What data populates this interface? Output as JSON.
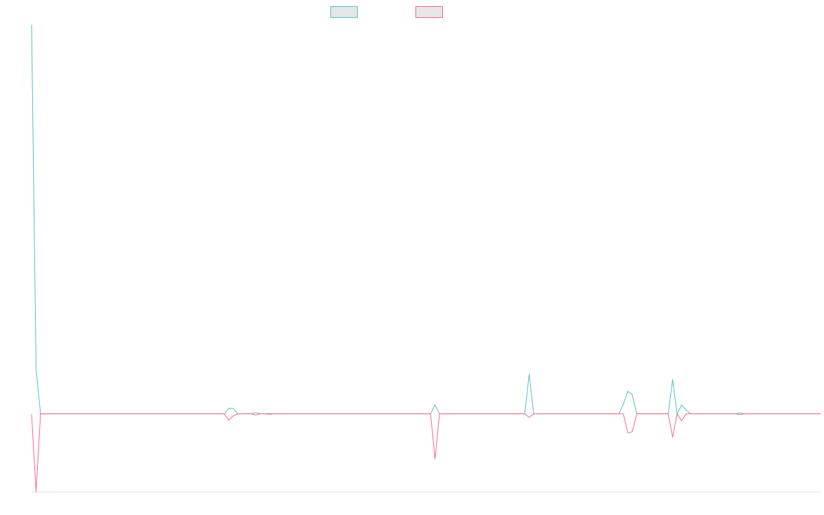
{
  "chart_data": {
    "type": "line",
    "ylim": [
      -20,
      100
    ],
    "series": [
      {
        "color": "#4bc0c0",
        "values": [
          100,
          11.5,
          0,
          0,
          0,
          0,
          0,
          0,
          0,
          0,
          0,
          0,
          0,
          0,
          0,
          0,
          0,
          0,
          0,
          0,
          0,
          0,
          0,
          0,
          0,
          0,
          0,
          0,
          0,
          0,
          0,
          0,
          0,
          0,
          0,
          0,
          0,
          0,
          0,
          0,
          0,
          0,
          0,
          0,
          1.4,
          1.4,
          0,
          0,
          0,
          0,
          0.3,
          0,
          0,
          0.1,
          0,
          0,
          0,
          0,
          0,
          0,
          0,
          0,
          0,
          0,
          0,
          0,
          0,
          0,
          0,
          0,
          0,
          0,
          0,
          0,
          0,
          0,
          0,
          0,
          0,
          0,
          0,
          0,
          0,
          0,
          0,
          0,
          0,
          0,
          0,
          0,
          2.3,
          0,
          0,
          0,
          0,
          0,
          0,
          0,
          0,
          0,
          0,
          0,
          0,
          0,
          0,
          0,
          0,
          0,
          0,
          0,
          0,
          10.2,
          0,
          0,
          0,
          0,
          0,
          0,
          0,
          0,
          0,
          0,
          0,
          0,
          0,
          0,
          0,
          0,
          0,
          0,
          0,
          0,
          2.5,
          5.8,
          4.9,
          0,
          0,
          0,
          0,
          0,
          0,
          0,
          0,
          8.8,
          0,
          2.3,
          1,
          0,
          0,
          0,
          0,
          0,
          0,
          0,
          0,
          0,
          0,
          0,
          0.2,
          0,
          0,
          0,
          0,
          0,
          0,
          0,
          0,
          0,
          0,
          0,
          0,
          0,
          0,
          0,
          0,
          0,
          0
        ]
      },
      {
        "color": "#ff6384",
        "values": [
          0,
          -20,
          0,
          0,
          0,
          0,
          0,
          0,
          0,
          0,
          0,
          0,
          0,
          0,
          0,
          0,
          0,
          0,
          0,
          0,
          0,
          0,
          0,
          0,
          0,
          0,
          0,
          0,
          0,
          0,
          0,
          0,
          0,
          0,
          0,
          0,
          0,
          0,
          0,
          0,
          0,
          0,
          0,
          0,
          -1.6,
          -0.5,
          0,
          0,
          0,
          0,
          -0.3,
          0,
          0,
          -0.1,
          0,
          0,
          0,
          0,
          0,
          0,
          0,
          0,
          0,
          0,
          0,
          0,
          0,
          0,
          0,
          0,
          0,
          0,
          0,
          0,
          0,
          0,
          0,
          0,
          0,
          0,
          0,
          0,
          0,
          0,
          0,
          0,
          0,
          0,
          0,
          0,
          -11.6,
          0,
          0,
          0,
          0,
          0,
          0,
          0,
          0,
          0,
          0,
          0,
          0,
          0,
          0,
          0,
          0,
          0,
          0,
          0,
          0,
          -0.9,
          0,
          0,
          0,
          0,
          0,
          0,
          0,
          0,
          0,
          0,
          0,
          0,
          0,
          0,
          0,
          0,
          0,
          0,
          0,
          0,
          0,
          -4.9,
          -4.6,
          0,
          0,
          0,
          0,
          0,
          0,
          0,
          0,
          -6,
          0,
          -1.8,
          0,
          0,
          0,
          0,
          0,
          0,
          0,
          0,
          0,
          0,
          0,
          0,
          -0.2,
          0,
          0,
          0,
          0,
          0,
          0,
          0,
          0,
          0,
          0,
          0,
          0,
          0,
          0,
          0,
          0,
          0,
          0
        ]
      }
    ]
  }
}
